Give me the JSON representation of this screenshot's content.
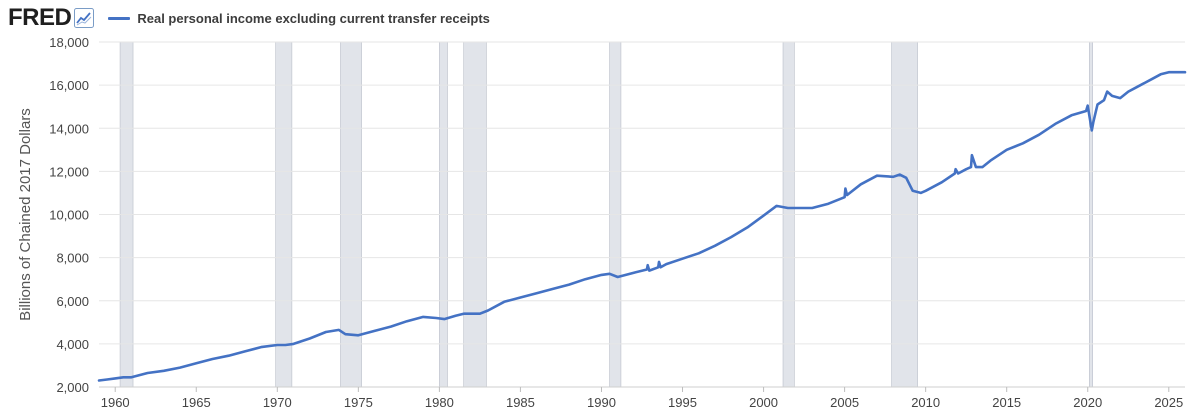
{
  "brand": {
    "logo_text": "FRED",
    "logo_icon": "line-chart-icon"
  },
  "colors": {
    "series": "#4472c4",
    "recession": "#e1e4ea",
    "grid": "#e6e6e6"
  },
  "chart_data": {
    "type": "line",
    "title": "",
    "xlabel": "",
    "ylabel": "Billions of Chained 2017 Dollars",
    "xlim": [
      1959,
      2026
    ],
    "ylim": [
      2000,
      18000
    ],
    "x_ticks": [
      "1960",
      "1965",
      "1970",
      "1975",
      "1980",
      "1985",
      "1990",
      "1995",
      "2000",
      "2005",
      "2010",
      "2015",
      "2020",
      "2025"
    ],
    "y_ticks": [
      "2,000",
      "4,000",
      "6,000",
      "8,000",
      "10,000",
      "12,000",
      "14,000",
      "16,000",
      "18,000"
    ],
    "grid": true,
    "legend_position": "top-left",
    "recessions": [
      [
        1960.3,
        1961.1
      ],
      [
        1969.9,
        1970.9
      ],
      [
        1973.9,
        1975.2
      ],
      [
        1980.0,
        1980.5
      ],
      [
        1981.5,
        1982.9
      ],
      [
        1990.5,
        1991.2
      ],
      [
        2001.2,
        2001.9
      ],
      [
        2007.9,
        2009.5
      ],
      [
        2020.1,
        2020.3
      ]
    ],
    "series": [
      {
        "name": "Real personal income excluding current transfer receipts",
        "x": [
          1959.0,
          1959.5,
          1960.0,
          1960.5,
          1961.0,
          1961.5,
          1962.0,
          1963.0,
          1964.0,
          1965.0,
          1966.0,
          1967.0,
          1968.0,
          1969.0,
          1970.0,
          1970.5,
          1971.0,
          1972.0,
          1973.0,
          1973.8,
          1974.2,
          1975.0,
          1976.0,
          1977.0,
          1978.0,
          1979.0,
          1979.8,
          1980.3,
          1981.0,
          1981.5,
          1982.0,
          1982.5,
          1983.0,
          1984.0,
          1985.0,
          1986.0,
          1987.0,
          1988.0,
          1989.0,
          1990.0,
          1990.5,
          1991.0,
          1992.0,
          1992.8,
          1992.85,
          1992.95,
          1993.5,
          1993.55,
          1993.65,
          1994.0,
          1995.0,
          1996.0,
          1997.0,
          1998.0,
          1999.0,
          2000.0,
          2000.8,
          2001.5,
          2002.0,
          2003.0,
          2004.0,
          2005.0,
          2005.05,
          2005.15,
          2006.0,
          2007.0,
          2008.0,
          2008.4,
          2008.8,
          2009.2,
          2009.7,
          2010.0,
          2011.0,
          2011.8,
          2011.85,
          2012.0,
          2012.5,
          2012.8,
          2012.85,
          2013.1,
          2013.5,
          2014.0,
          2015.0,
          2016.0,
          2017.0,
          2018.0,
          2019.0,
          2019.9,
          2020.0,
          2020.25,
          2020.35,
          2020.6,
          2021.0,
          2021.2,
          2021.5,
          2022.0,
          2022.5,
          2023.0,
          2024.0,
          2024.5,
          2025.0,
          2025.5,
          2026.0
        ],
        "values": [
          2300,
          2350,
          2400,
          2450,
          2450,
          2550,
          2650,
          2750,
          2900,
          3100,
          3300,
          3450,
          3650,
          3850,
          3950,
          3950,
          4000,
          4250,
          4550,
          4650,
          4450,
          4400,
          4600,
          4800,
          5050,
          5250,
          5200,
          5150,
          5300,
          5400,
          5400,
          5400,
          5550,
          5950,
          6150,
          6350,
          6550,
          6750,
          7000,
          7200,
          7250,
          7100,
          7300,
          7450,
          7650,
          7400,
          7550,
          7800,
          7550,
          7700,
          7950,
          8200,
          8550,
          8950,
          9400,
          9950,
          10400,
          10300,
          10300,
          10300,
          10500,
          10800,
          11200,
          10900,
          11400,
          11800,
          11750,
          11850,
          11700,
          11100,
          11000,
          11100,
          11500,
          11900,
          12100,
          11900,
          12100,
          12200,
          12750,
          12200,
          12200,
          12500,
          13000,
          13300,
          13700,
          14200,
          14600,
          14800,
          15050,
          13900,
          14300,
          15100,
          15300,
          15700,
          15500,
          15400,
          15700,
          15900,
          16300,
          16500,
          16600,
          16600,
          16600
        ]
      }
    ]
  }
}
